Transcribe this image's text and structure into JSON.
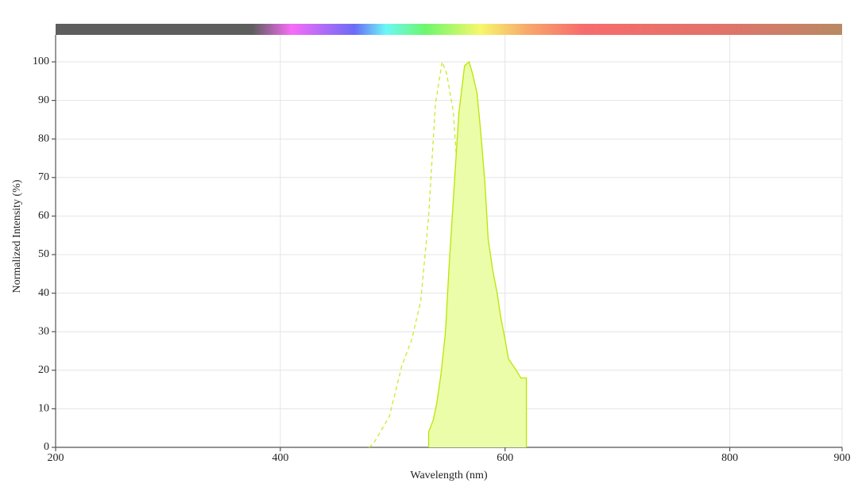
{
  "chart_data": {
    "type": "line",
    "xlabel": "Wavelength (nm)",
    "ylabel": "Normalized Intensity (%)",
    "xlim": [
      200,
      900
    ],
    "ylim": [
      0,
      100
    ],
    "xticks": [
      200,
      400,
      600,
      800,
      900
    ],
    "yticks": [
      0,
      10,
      20,
      30,
      40,
      50,
      60,
      70,
      80,
      90,
      100
    ],
    "grid": true,
    "series": [
      {
        "color": "#c8ec2a",
        "dashed": true,
        "fill": null,
        "x": [
          479,
          483,
          497,
          508,
          517,
          525,
          532,
          538,
          544,
          548,
          554,
          559,
          564,
          569,
          575,
          578
        ],
        "values": [
          0,
          1,
          8,
          21,
          28,
          38,
          60,
          89,
          100,
          97,
          87,
          65,
          34,
          17,
          5,
          0
        ]
      },
      {
        "color": "#b8e600",
        "dashed": false,
        "fill": "#ebfda8",
        "x": [
          532,
          532,
          536,
          539,
          543,
          547,
          550,
          555,
          559,
          564,
          568,
          571,
          575,
          578,
          582,
          585,
          589,
          593,
          596,
          600,
          603,
          610,
          614,
          619,
          619
        ],
        "values": [
          0,
          4,
          7,
          11,
          19,
          30,
          46,
          69,
          87,
          99,
          100,
          97,
          92,
          83,
          69,
          54,
          46,
          40,
          34,
          28,
          23,
          20,
          18,
          18,
          0
        ]
      }
    ]
  }
}
